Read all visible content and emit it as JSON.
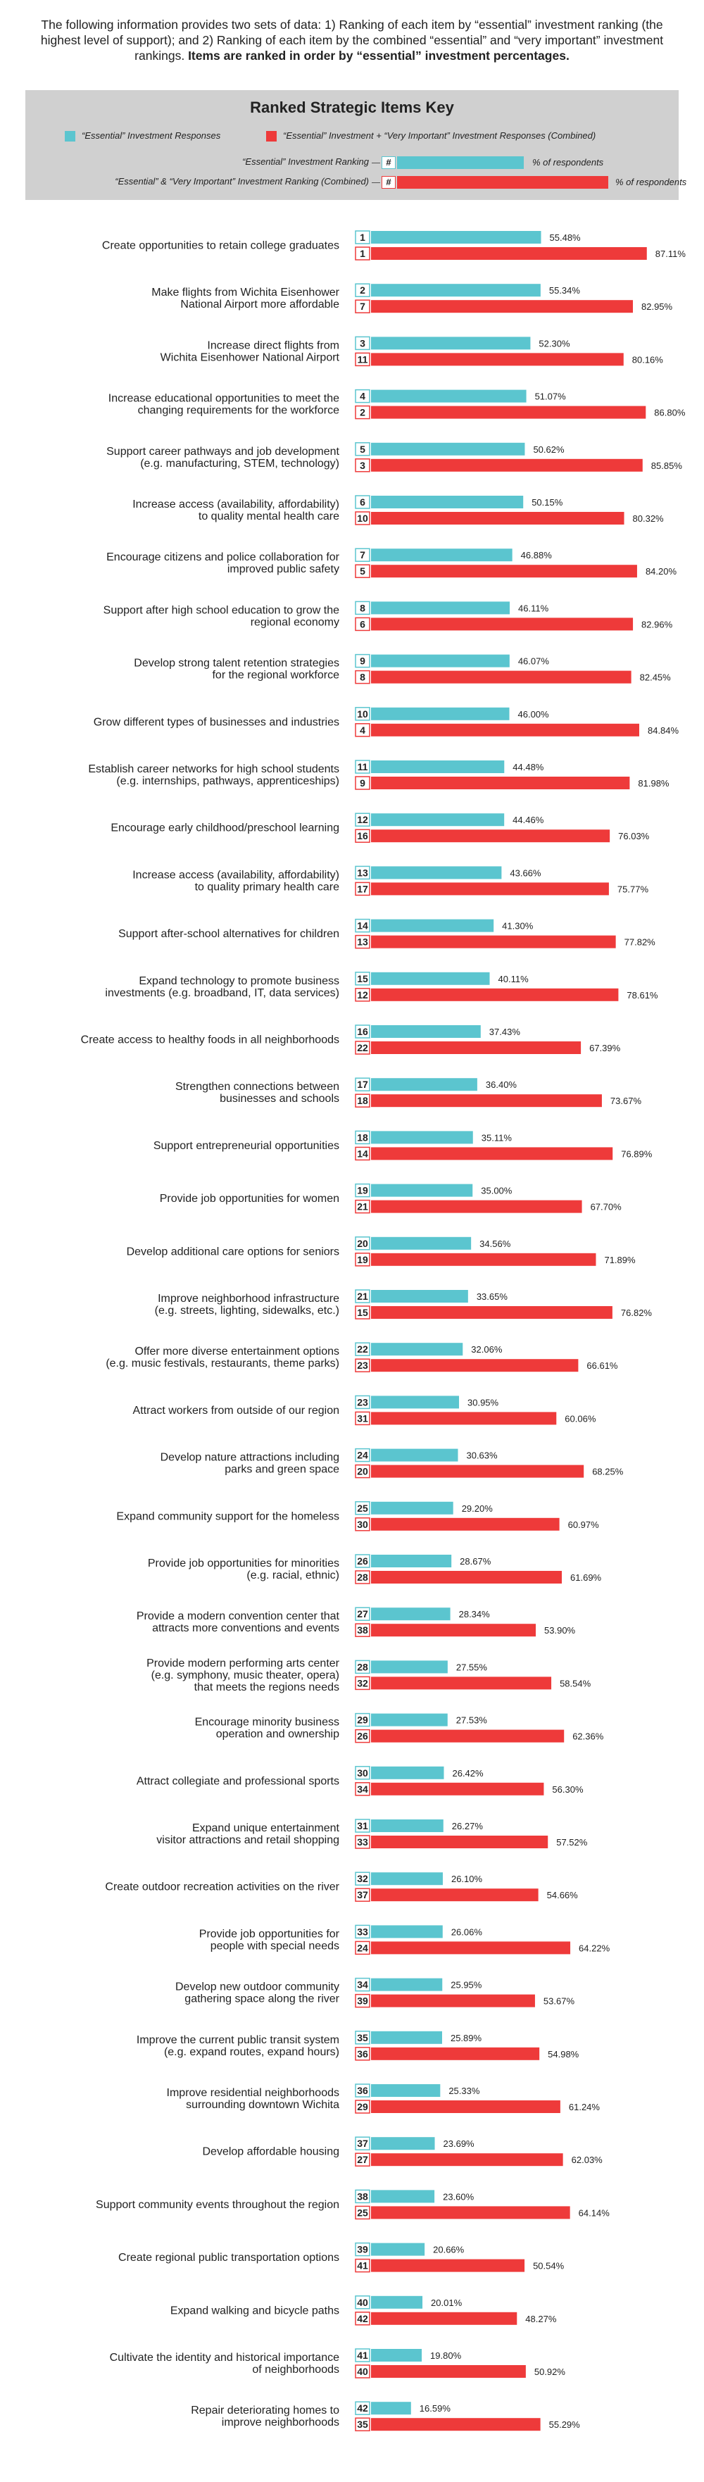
{
  "intro": {
    "text_plain": "The following information provides two sets of data: 1) Ranking of each item by “essential” investment ranking (the highest level of support); and 2) Ranking of each item by the combined “essential” and “very important” investment rankings.",
    "text_bold": "Items are ranked in order by “essential” investment percentages."
  },
  "key": {
    "title": "Ranked Strategic Items Key",
    "legend_essential": "“Essential” Investment Responses",
    "legend_combined": "“Essential” Investment + “Very Important” Investment Responses (Combined)",
    "example_essential_label": "“Essential” Investment Ranking",
    "example_combined_label": "“Essential” & “Very Important” Investment Ranking (Combined)",
    "example_rank_symbol": "#",
    "example_pct_label": "% of respondents",
    "colors": {
      "essential": "#5bc5cf",
      "combined": "#ee3a3a"
    }
  },
  "chart_data": {
    "type": "bar",
    "orientation": "horizontal",
    "series": [
      {
        "name": "“Essential” Investment Responses",
        "color": "#5bc5cf"
      },
      {
        "name": "“Essential” Investment + “Very Important” Investment Responses (Combined)",
        "color": "#ee3a3a"
      }
    ],
    "xlim": [
      0,
      100
    ],
    "items": [
      {
        "label": [
          "Create opportunities to retain college graduates"
        ],
        "ess_rank": "1",
        "ess": 55.48,
        "comb_rank": "1",
        "comb": 87.11
      },
      {
        "label": [
          "Make flights from Wichita Eisenhower",
          "National Airport more affordable"
        ],
        "ess_rank": "2",
        "ess": 55.34,
        "comb_rank": "7",
        "comb": 82.95
      },
      {
        "label": [
          "Increase direct flights from",
          "Wichita Eisenhower National Airport"
        ],
        "ess_rank": "3",
        "ess": 52.3,
        "comb_rank": "11",
        "comb": 80.16
      },
      {
        "label": [
          "Increase educational opportunities to meet the",
          "changing requirements for the workforce"
        ],
        "ess_rank": "4",
        "ess": 51.07,
        "comb_rank": "2",
        "comb": 86.8
      },
      {
        "label": [
          "Support career pathways and job development",
          "(e.g. manufacturing, STEM, technology)"
        ],
        "ess_rank": "5",
        "ess": 50.62,
        "comb_rank": "3",
        "comb": 85.85
      },
      {
        "label": [
          "Increase access (availability, affordability)",
          "to quality mental health care"
        ],
        "ess_rank": "6",
        "ess": 50.15,
        "comb_rank": "10",
        "comb": 80.32
      },
      {
        "label": [
          "Encourage citizens and police collaboration for",
          "improved public safety"
        ],
        "ess_rank": "7",
        "ess": 46.88,
        "comb_rank": "5",
        "comb": 84.2
      },
      {
        "label": [
          "Support after high school education to grow the",
          "regional economy"
        ],
        "ess_rank": "8",
        "ess": 46.11,
        "comb_rank": "6",
        "comb": 82.96
      },
      {
        "label": [
          "Develop strong talent retention strategies",
          "for the regional workforce"
        ],
        "ess_rank": "9",
        "ess": 46.07,
        "comb_rank": "8",
        "comb": 82.45
      },
      {
        "label": [
          "Grow different types of businesses and industries"
        ],
        "ess_rank": "10",
        "ess": 46.0,
        "comb_rank": "4",
        "comb": 84.84
      },
      {
        "label": [
          "Establish career networks for high school students",
          "(e.g. internships, pathways, apprenticeships)"
        ],
        "ess_rank": "11",
        "ess": 44.48,
        "comb_rank": "9",
        "comb": 81.98
      },
      {
        "label": [
          "Encourage early childhood/preschool learning"
        ],
        "ess_rank": "12",
        "ess": 44.46,
        "comb_rank": "16",
        "comb": 76.03
      },
      {
        "label": [
          "Increase access (availability, affordability)",
          "to quality primary health care"
        ],
        "ess_rank": "13",
        "ess": 43.66,
        "comb_rank": "17",
        "comb": 75.77
      },
      {
        "label": [
          "Support after-school alternatives for children"
        ],
        "ess_rank": "14",
        "ess": 41.3,
        "comb_rank": "13",
        "comb": 77.82
      },
      {
        "label": [
          "Expand technology to promote business",
          "investments (e.g. broadband, IT, data services)"
        ],
        "ess_rank": "15",
        "ess": 40.11,
        "comb_rank": "12",
        "comb": 78.61
      },
      {
        "label": [
          "Create access to healthy foods in all neighborhoods"
        ],
        "ess_rank": "16",
        "ess": 37.43,
        "comb_rank": "22",
        "comb": 67.39
      },
      {
        "label": [
          "Strengthen connections between",
          "businesses and schools"
        ],
        "ess_rank": "17",
        "ess": 36.4,
        "comb_rank": "18",
        "comb": 73.67
      },
      {
        "label": [
          "Support entrepreneurial opportunities"
        ],
        "ess_rank": "18",
        "ess": 35.11,
        "comb_rank": "14",
        "comb": 76.89
      },
      {
        "label": [
          "Provide job opportunities for women"
        ],
        "ess_rank": "19",
        "ess": 35.0,
        "comb_rank": "21",
        "comb": 67.7
      },
      {
        "label": [
          "Develop additional care options for seniors"
        ],
        "ess_rank": "20",
        "ess": 34.56,
        "comb_rank": "19",
        "comb": 71.89
      },
      {
        "label": [
          "Improve neighborhood infrastructure",
          "(e.g. streets, lighting, sidewalks, etc.)"
        ],
        "ess_rank": "21",
        "ess": 33.65,
        "comb_rank": "15",
        "comb": 76.82
      },
      {
        "label": [
          "Offer more diverse entertainment options",
          "(e.g. music festivals, restaurants, theme parks)"
        ],
        "ess_rank": "22",
        "ess": 32.06,
        "comb_rank": "23",
        "comb": 66.61
      },
      {
        "label": [
          "Attract workers from outside of our region"
        ],
        "ess_rank": "23",
        "ess": 30.95,
        "comb_rank": "31",
        "comb": 60.06
      },
      {
        "label": [
          "Develop nature attractions including",
          "parks and green space"
        ],
        "ess_rank": "24",
        "ess": 30.63,
        "comb_rank": "20",
        "comb": 68.25
      },
      {
        "label": [
          "Expand community support for the homeless"
        ],
        "ess_rank": "25",
        "ess": 29.2,
        "comb_rank": "30",
        "comb": 60.97
      },
      {
        "label": [
          "Provide job opportunities for minorities",
          "(e.g. racial, ethnic)"
        ],
        "ess_rank": "26",
        "ess": 28.67,
        "comb_rank": "28",
        "comb": 61.69
      },
      {
        "label": [
          "Provide a modern convention center that",
          "attracts more conventions and events"
        ],
        "ess_rank": "27",
        "ess": 28.34,
        "comb_rank": "38",
        "comb": 53.9
      },
      {
        "label": [
          "Provide modern performing arts center",
          "(e.g. symphony, music theater, opera)",
          "that meets the regions needs"
        ],
        "ess_rank": "28",
        "ess": 27.55,
        "comb_rank": "32",
        "comb": 58.54
      },
      {
        "label": [
          "Encourage minority business",
          "operation and ownership"
        ],
        "ess_rank": "29",
        "ess": 27.53,
        "comb_rank": "26",
        "comb": 62.36
      },
      {
        "label": [
          "Attract collegiate and professional sports"
        ],
        "ess_rank": "30",
        "ess": 26.42,
        "comb_rank": "34",
        "comb": 56.3
      },
      {
        "label": [
          "Expand unique entertainment",
          "visitor attractions and retail shopping"
        ],
        "ess_rank": "31",
        "ess": 26.27,
        "comb_rank": "33",
        "comb": 57.52
      },
      {
        "label": [
          "Create outdoor recreation activities on the river"
        ],
        "ess_rank": "32",
        "ess": 26.1,
        "comb_rank": "37",
        "comb": 54.66
      },
      {
        "label": [
          "Provide job opportunities for",
          "people with special needs"
        ],
        "ess_rank": "33",
        "ess": 26.06,
        "comb_rank": "24",
        "comb": 64.22
      },
      {
        "label": [
          "Develop new outdoor community",
          "gathering space along the river"
        ],
        "ess_rank": "34",
        "ess": 25.95,
        "comb_rank": "39",
        "comb": 53.67
      },
      {
        "label": [
          "Improve the current public transit system",
          "(e.g. expand routes, expand hours)"
        ],
        "ess_rank": "35",
        "ess": 25.89,
        "comb_rank": "36",
        "comb": 54.98
      },
      {
        "label": [
          "Improve residential neighborhoods",
          "surrounding downtown Wichita"
        ],
        "ess_rank": "36",
        "ess": 25.33,
        "comb_rank": "29",
        "comb": 61.24
      },
      {
        "label": [
          "Develop affordable housing"
        ],
        "ess_rank": "37",
        "ess": 23.69,
        "comb_rank": "27",
        "comb": 62.03
      },
      {
        "label": [
          "Support community events throughout the region"
        ],
        "ess_rank": "38",
        "ess": 23.6,
        "comb_rank": "25",
        "comb": 64.14
      },
      {
        "label": [
          "Create regional public transportation options"
        ],
        "ess_rank": "39",
        "ess": 20.66,
        "comb_rank": "41",
        "comb": 50.54
      },
      {
        "label": [
          "Expand walking and bicycle paths"
        ],
        "ess_rank": "40",
        "ess": 20.01,
        "comb_rank": "42",
        "comb": 48.27
      },
      {
        "label": [
          "Cultivate the identity and historical importance",
          "of neighborhoods"
        ],
        "ess_rank": "41",
        "ess": 19.8,
        "comb_rank": "40",
        "comb": 50.92
      },
      {
        "label": [
          "Repair deteriorating homes to",
          "improve neighborhoods"
        ],
        "ess_rank": "42",
        "ess": 16.59,
        "comb_rank": "35",
        "comb": 55.29
      }
    ]
  }
}
